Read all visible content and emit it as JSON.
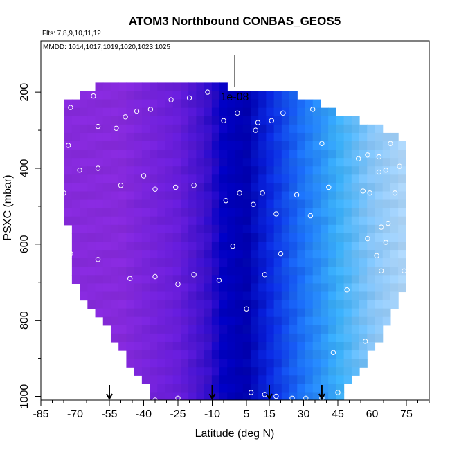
{
  "chart_data": {
    "type": "heatmap",
    "title": "ATOM3 Northbound CONBAS_GEOS5",
    "flights_note": "Flts: 7,8,9,10,11,12",
    "dates_note": "MMDD: 1014,1017,1019,1020,1023,1025",
    "xlabel": "Latitude (deg N)",
    "ylabel": "PSXC (mbar)",
    "xlim": [
      -85,
      85
    ],
    "ylim": [
      1010,
      65
    ],
    "y_inverted": true,
    "x_ticks": [
      "-85",
      "-70",
      "-55",
      "-40",
      "-25",
      "-10",
      "5",
      "15",
      "30",
      "45",
      "60",
      "75"
    ],
    "y_ticks": [
      "200",
      "400",
      "600",
      "800",
      "1000"
    ],
    "legend_label": "1e-08",
    "arrows_lat": [
      -55,
      -10,
      15,
      38
    ],
    "value_colors": [
      {
        "lat": -50,
        "color": "#8a2be2"
      },
      {
        "lat": -25,
        "color": "#6a1ee0"
      },
      {
        "lat": -12,
        "color": "#3a10d0"
      },
      {
        "lat": -5,
        "color": "#0000c8"
      },
      {
        "lat": 5,
        "color": "#0000b4"
      },
      {
        "lat": 15,
        "color": "#0a28e6"
      },
      {
        "lat": 30,
        "color": "#1e78ff"
      },
      {
        "lat": 45,
        "color": "#3cb4ff"
      },
      {
        "lat": 60,
        "color": "#8ccbff"
      },
      {
        "lat": 75,
        "color": "#b4dcff"
      }
    ],
    "samples": [
      {
        "lat": -72,
        "p": 240
      },
      {
        "lat": -62,
        "p": 210
      },
      {
        "lat": -60,
        "p": 290
      },
      {
        "lat": -52,
        "p": 295
      },
      {
        "lat": -48,
        "p": 265
      },
      {
        "lat": -43,
        "p": 250
      },
      {
        "lat": -37,
        "p": 245
      },
      {
        "lat": -28,
        "p": 220
      },
      {
        "lat": -20,
        "p": 215
      },
      {
        "lat": -12,
        "p": 200
      },
      {
        "lat": -73,
        "p": 340
      },
      {
        "lat": -75,
        "p": 465
      },
      {
        "lat": -68,
        "p": 405
      },
      {
        "lat": -60,
        "p": 400
      },
      {
        "lat": -40,
        "p": 420
      },
      {
        "lat": -50,
        "p": 445
      },
      {
        "lat": -35,
        "p": 455
      },
      {
        "lat": -26,
        "p": 450
      },
      {
        "lat": -18,
        "p": 445
      },
      {
        "lat": -72,
        "p": 625
      },
      {
        "lat": -60,
        "p": 640
      },
      {
        "lat": -46,
        "p": 690
      },
      {
        "lat": -35,
        "p": 685
      },
      {
        "lat": -25,
        "p": 705
      },
      {
        "lat": -18,
        "p": 680
      },
      {
        "lat": -7,
        "p": 695
      },
      {
        "lat": -5,
        "p": 275
      },
      {
        "lat": 1,
        "p": 255
      },
      {
        "lat": 10,
        "p": 280
      },
      {
        "lat": 9,
        "p": 300
      },
      {
        "lat": 16,
        "p": 275
      },
      {
        "lat": 21,
        "p": 255
      },
      {
        "lat": 34,
        "p": 245
      },
      {
        "lat": -4,
        "p": 485
      },
      {
        "lat": 2,
        "p": 465
      },
      {
        "lat": 12,
        "p": 465
      },
      {
        "lat": 8,
        "p": 495
      },
      {
        "lat": 18,
        "p": 520
      },
      {
        "lat": 27,
        "p": 470
      },
      {
        "lat": 33,
        "p": 525
      },
      {
        "lat": 41,
        "p": 450
      },
      {
        "lat": 38,
        "p": 335
      },
      {
        "lat": 54,
        "p": 375
      },
      {
        "lat": 58,
        "p": 365
      },
      {
        "lat": 63,
        "p": 370
      },
      {
        "lat": 68,
        "p": 335
      },
      {
        "lat": 63,
        "p": 410
      },
      {
        "lat": 66,
        "p": 405
      },
      {
        "lat": 72,
        "p": 395
      },
      {
        "lat": 56,
        "p": 460
      },
      {
        "lat": 59,
        "p": 465
      },
      {
        "lat": 70,
        "p": 465
      },
      {
        "lat": 64,
        "p": 555
      },
      {
        "lat": 67,
        "p": 545
      },
      {
        "lat": 58,
        "p": 585
      },
      {
        "lat": 66,
        "p": 595
      },
      {
        "lat": 62,
        "p": 630
      },
      {
        "lat": 74,
        "p": 670
      },
      {
        "lat": 64,
        "p": 670
      },
      {
        "lat": 49,
        "p": 720
      },
      {
        "lat": 43,
        "p": 885
      },
      {
        "lat": 57,
        "p": 855
      },
      {
        "lat": -1,
        "p": 605
      },
      {
        "lat": 20,
        "p": 625
      },
      {
        "lat": 13,
        "p": 680
      },
      {
        "lat": 5,
        "p": 770
      },
      {
        "lat": -40,
        "p": 1000
      },
      {
        "lat": -35,
        "p": 1010
      },
      {
        "lat": -25,
        "p": 1005
      },
      {
        "lat": 7,
        "p": 990
      },
      {
        "lat": 13,
        "p": 995
      },
      {
        "lat": 18,
        "p": 1000
      },
      {
        "lat": 25,
        "p": 1005
      },
      {
        "lat": 31,
        "p": 1005
      },
      {
        "lat": 38,
        "p": 1005
      },
      {
        "lat": 45,
        "p": 990
      }
    ]
  }
}
